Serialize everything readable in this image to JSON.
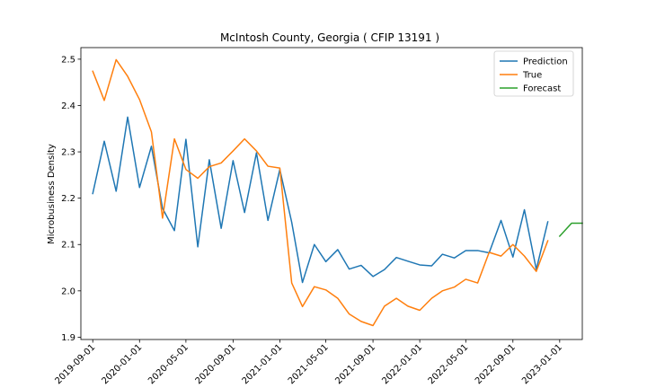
{
  "chart_data": {
    "type": "line",
    "title": "McIntosh County, Georgia ( CFIP 13191 )",
    "xlabel": "",
    "ylabel": "Microbusiness Density",
    "xlim": [
      "2019-08-01",
      "2023-03-01"
    ],
    "ylim": [
      1.895,
      2.525
    ],
    "x_ticks": [
      "2019-09-01",
      "2020-01-01",
      "2020-05-01",
      "2020-09-01",
      "2021-01-01",
      "2021-05-01",
      "2021-09-01",
      "2022-01-01",
      "2022-05-01",
      "2022-09-01",
      "2023-01-01"
    ],
    "y_ticks": [
      1.9,
      2.0,
      2.1,
      2.2,
      2.3,
      2.4,
      2.5
    ],
    "legend_position": "top-right",
    "grid": false,
    "series": [
      {
        "name": "Prediction",
        "color": "#1f77b4",
        "x": [
          "2019-09-01",
          "2019-10-01",
          "2019-11-01",
          "2019-12-01",
          "2020-01-01",
          "2020-02-01",
          "2020-03-01",
          "2020-04-01",
          "2020-05-01",
          "2020-06-01",
          "2020-07-01",
          "2020-08-01",
          "2020-09-01",
          "2020-10-01",
          "2020-11-01",
          "2020-12-01",
          "2021-01-01",
          "2021-02-01",
          "2021-03-01",
          "2021-04-01",
          "2021-05-01",
          "2021-06-01",
          "2021-07-01",
          "2021-08-01",
          "2021-09-01",
          "2021-10-01",
          "2021-11-01",
          "2021-12-01",
          "2022-01-01",
          "2022-02-01",
          "2022-03-01",
          "2022-04-01",
          "2022-05-01",
          "2022-06-01",
          "2022-07-01",
          "2022-08-01",
          "2022-09-01",
          "2022-10-01",
          "2022-11-01",
          "2022-12-01"
        ],
        "y": [
          2.21,
          2.323,
          2.215,
          2.375,
          2.223,
          2.312,
          2.178,
          2.13,
          2.327,
          2.095,
          2.283,
          2.135,
          2.281,
          2.169,
          2.298,
          2.152,
          2.262,
          2.148,
          2.018,
          2.1,
          2.063,
          2.089,
          2.047,
          2.055,
          2.031,
          2.046,
          2.072,
          2.064,
          2.056,
          2.054,
          2.079,
          2.071,
          2.087,
          2.087,
          2.082,
          2.152,
          2.073,
          2.175,
          2.046,
          2.149
        ]
      },
      {
        "name": "True",
        "color": "#ff7f0e",
        "x": [
          "2019-09-01",
          "2019-10-01",
          "2019-11-01",
          "2019-12-01",
          "2020-01-01",
          "2020-02-01",
          "2020-03-01",
          "2020-04-01",
          "2020-05-01",
          "2020-06-01",
          "2020-07-01",
          "2020-08-01",
          "2020-09-01",
          "2020-10-01",
          "2020-11-01",
          "2020-12-01",
          "2021-01-01",
          "2021-02-01",
          "2021-03-01",
          "2021-04-01",
          "2021-05-01",
          "2021-06-01",
          "2021-07-01",
          "2021-08-01",
          "2021-09-01",
          "2021-10-01",
          "2021-11-01",
          "2021-12-01",
          "2022-01-01",
          "2022-02-01",
          "2022-03-01",
          "2022-04-01",
          "2022-05-01",
          "2022-06-01",
          "2022-07-01",
          "2022-08-01",
          "2022-09-01",
          "2022-10-01",
          "2022-11-01",
          "2022-12-01"
        ],
        "y": [
          2.474,
          2.411,
          2.499,
          2.463,
          2.413,
          2.343,
          2.157,
          2.328,
          2.262,
          2.243,
          2.268,
          2.276,
          2.302,
          2.328,
          2.302,
          2.269,
          2.265,
          2.017,
          1.966,
          2.009,
          2.002,
          1.984,
          1.95,
          1.934,
          1.925,
          1.967,
          1.984,
          1.967,
          1.958,
          1.984,
          2.0,
          2.008,
          2.025,
          2.017,
          2.083,
          2.075,
          2.1,
          2.075,
          2.042,
          2.108
        ]
      },
      {
        "name": "Forecast",
        "color": "#2ca02c",
        "x": [
          "2023-01-01",
          "2023-02-01",
          "2023-03-01"
        ],
        "y": [
          2.118,
          2.146,
          2.146
        ]
      }
    ]
  }
}
